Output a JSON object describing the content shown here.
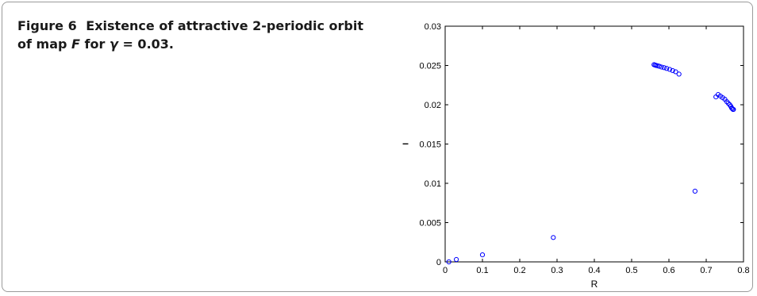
{
  "caption": {
    "figure_label": "Figure 6",
    "text_part1": "Existence of attractive 2-periodic orbit of map",
    "map_symbol": "F",
    "text_part2": "for",
    "param_symbol": "γ",
    "text_part3": "= 0.03."
  },
  "chart_data": {
    "type": "scatter",
    "xlabel": "R",
    "ylabel": "–",
    "xlim": [
      0,
      0.8
    ],
    "ylim": [
      0,
      0.03
    ],
    "x_ticks": [
      0,
      0.1,
      0.2,
      0.3,
      0.4,
      0.5,
      0.6,
      0.7,
      0.8
    ],
    "x_tick_labels": [
      "0",
      "0.1",
      "0.2",
      "0.3",
      "0.4",
      "0.5",
      "0.6",
      "0.7",
      "0.8"
    ],
    "y_ticks": [
      0,
      0.005,
      0.01,
      0.015,
      0.02,
      0.025,
      0.03
    ],
    "y_tick_labels": [
      "0",
      "0.005",
      "0.01",
      "0.015",
      "0.02",
      "0.025",
      "0.03"
    ],
    "grid": false,
    "marker": "circle-open",
    "marker_color": "#0000ff",
    "points": [
      [
        0.01,
        0.0
      ],
      [
        0.03,
        0.0003
      ],
      [
        0.1,
        0.0009
      ],
      [
        0.29,
        0.0031
      ],
      [
        0.67,
        0.009
      ],
      [
        0.56,
        0.0251
      ],
      [
        0.563,
        0.02505
      ],
      [
        0.566,
        0.025
      ],
      [
        0.57,
        0.02495
      ],
      [
        0.574,
        0.0249
      ],
      [
        0.58,
        0.0248
      ],
      [
        0.587,
        0.02472
      ],
      [
        0.594,
        0.02462
      ],
      [
        0.602,
        0.0245
      ],
      [
        0.61,
        0.02435
      ],
      [
        0.618,
        0.0242
      ],
      [
        0.627,
        0.0239
      ],
      [
        0.726,
        0.021
      ],
      [
        0.732,
        0.0213
      ],
      [
        0.738,
        0.0211
      ],
      [
        0.744,
        0.0209
      ],
      [
        0.75,
        0.0207
      ],
      [
        0.755,
        0.0204
      ],
      [
        0.759,
        0.0202
      ],
      [
        0.763,
        0.02
      ],
      [
        0.766,
        0.0198
      ],
      [
        0.768,
        0.0196
      ],
      [
        0.77,
        0.0195
      ],
      [
        0.772,
        0.0194
      ],
      [
        0.773,
        0.0194
      ]
    ]
  }
}
